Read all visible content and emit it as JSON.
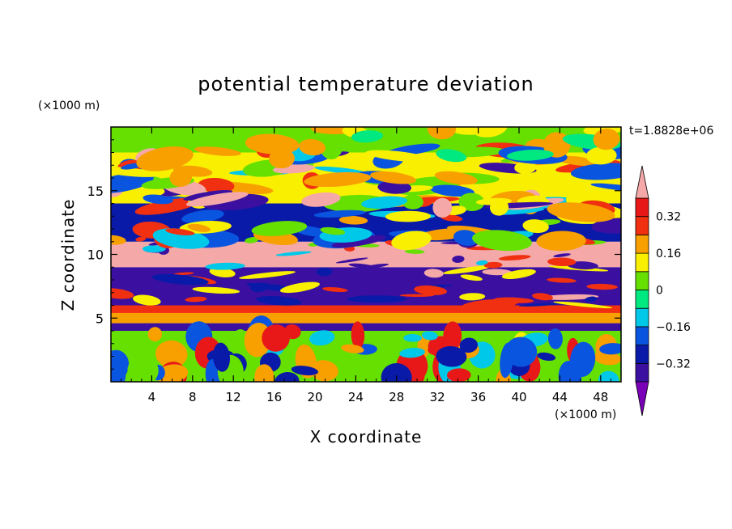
{
  "chart_data": {
    "type": "heatmap",
    "title": "potential temperature deviation",
    "xlabel": "X coordinate",
    "ylabel": "Z coordinate",
    "x_unit": "(×1000 m)",
    "y_unit": "(×1000 m)",
    "time_label": "t=1.8828e+06",
    "xlim": [
      0,
      50
    ],
    "ylim": [
      0,
      20
    ],
    "x_ticks": [
      4,
      8,
      12,
      16,
      20,
      24,
      28,
      32,
      36,
      40,
      44,
      48
    ],
    "y_ticks": [
      5,
      10,
      15
    ],
    "colorbar": {
      "levels": [
        -0.4,
        -0.32,
        -0.24,
        -0.16,
        -0.08,
        0,
        0.08,
        0.16,
        0.24,
        0.32,
        0.4
      ],
      "tick_labels": [
        "-0.32",
        "-0.16",
        "0",
        "0.16",
        "0.32"
      ],
      "colors": [
        "#7a00b8",
        "#3b10a0",
        "#0a1aa8",
        "#0a55e0",
        "#00c8e8",
        "#00e880",
        "#66e000",
        "#f8f000",
        "#f8a000",
        "#f03010",
        "#e81818",
        "#f4a8a8"
      ],
      "extend": "both"
    },
    "bands": [
      {
        "z": [
          0,
          4
        ],
        "description_value": 0.0
      },
      {
        "z": [
          4,
          4.6
        ],
        "value": -0.4
      },
      {
        "z": [
          4.6,
          5.4
        ],
        "value": 0.2
      },
      {
        "z": [
          5.4,
          6
        ],
        "value": 0.28
      },
      {
        "z": [
          6,
          9
        ],
        "value": -0.4
      },
      {
        "z": [
          9,
          11
        ],
        "value": 0.4
      },
      {
        "z": [
          11,
          14
        ],
        "value": -0.3
      },
      {
        "z": [
          14,
          18
        ],
        "value": 0.1
      },
      {
        "z": [
          18,
          20
        ],
        "value": 0.04
      }
    ]
  }
}
